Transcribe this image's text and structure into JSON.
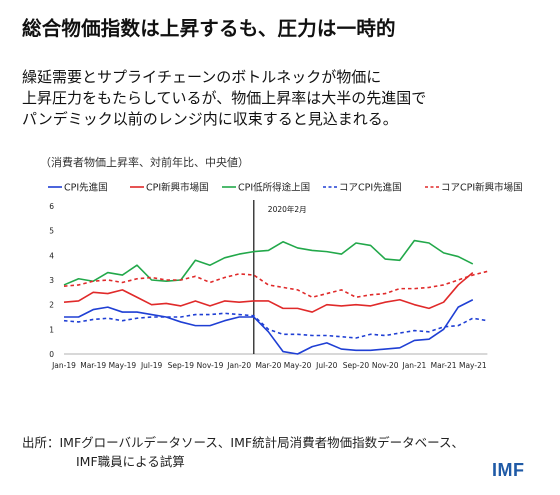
{
  "title": "総合物価指数は上昇するも、圧力は一時的",
  "subtitle_lines": [
    "繰延需要とサプライチェーンのボトルネックが物価に",
    "上昇圧力をもたらしているが、物価上昇率は大半の先進国で",
    "パンデミック以前のレンジ内に収束すると見込まれる。"
  ],
  "unit_label": "（消費者物価上昇率、対前年比、中央値）",
  "source_lines": [
    "出所：IMFグローバルデータソース、IMF統計局消費者物価指数データベース、",
    "IMF職員による試算"
  ],
  "logo": "IMF",
  "chart_data": {
    "type": "line",
    "x": [
      "Jan-19",
      "Feb-19",
      "Mar-19",
      "Apr-19",
      "May-19",
      "Jun-19",
      "Jul-19",
      "Aug-19",
      "Sep-19",
      "Oct-19",
      "Nov-19",
      "Dec-19",
      "Jan-20",
      "Feb-20",
      "Mar-20",
      "Apr-20",
      "May-20",
      "Jun-20",
      "Jul-20",
      "Aug-20",
      "Sep-20",
      "Oct-20",
      "Nov-20",
      "Dec-20",
      "Jan-21",
      "Feb-21",
      "Mar-21",
      "Apr-21",
      "May-21",
      "Jun-21"
    ],
    "x_tick_labels": [
      "Jan-19",
      "Mar-19",
      "May-19",
      "Jul-19",
      "Sep-19",
      "Nov-19",
      "Jan-20",
      "Mar-20",
      "May-20",
      "Jul-20",
      "Sep-20",
      "Nov-20",
      "Jan-21",
      "Mar-21",
      "May-21"
    ],
    "ylim": [
      0,
      6
    ],
    "yticks": [
      0,
      1,
      2,
      3,
      4,
      5,
      6
    ],
    "annotation": {
      "label": "2020年2月",
      "x": "Feb-20"
    },
    "series": [
      {
        "name": "CPI先進国",
        "color": "#1f3fd4",
        "dash": "solid",
        "values": [
          1.5,
          1.5,
          1.8,
          1.9,
          1.7,
          1.7,
          1.6,
          1.5,
          1.3,
          1.15,
          1.15,
          1.35,
          1.5,
          1.5,
          0.9,
          0.1,
          0.0,
          0.3,
          0.45,
          0.2,
          0.15,
          0.15,
          0.2,
          0.25,
          0.55,
          0.6,
          1.0,
          1.9,
          2.2,
          null
        ]
      },
      {
        "name": "CPI新興市場国",
        "color": "#e02a2a",
        "dash": "solid",
        "values": [
          2.1,
          2.15,
          2.5,
          2.45,
          2.6,
          2.3,
          2.0,
          2.05,
          1.95,
          2.15,
          1.95,
          2.15,
          2.1,
          2.15,
          2.15,
          1.85,
          1.85,
          1.7,
          2.0,
          1.95,
          2.0,
          1.95,
          2.1,
          2.2,
          2.0,
          1.85,
          2.1,
          2.8,
          3.3,
          null
        ]
      },
      {
        "name": "CPI低所得途上国",
        "color": "#22a84a",
        "dash": "solid",
        "values": [
          2.8,
          3.05,
          2.95,
          3.3,
          3.2,
          3.6,
          3.0,
          2.95,
          3.0,
          3.8,
          3.6,
          3.9,
          4.05,
          4.15,
          4.2,
          4.55,
          4.3,
          4.2,
          4.15,
          4.05,
          4.5,
          4.4,
          3.85,
          3.8,
          4.6,
          4.5,
          4.1,
          3.95,
          3.65,
          null
        ]
      },
      {
        "name": "コアCPI先進国",
        "color": "#1f3fd4",
        "dash": "dashed",
        "values": [
          1.35,
          1.3,
          1.4,
          1.45,
          1.35,
          1.45,
          1.5,
          1.5,
          1.5,
          1.6,
          1.6,
          1.65,
          1.6,
          1.55,
          1.0,
          0.8,
          0.8,
          0.75,
          0.75,
          0.7,
          0.65,
          0.8,
          0.75,
          0.85,
          0.95,
          0.9,
          1.1,
          1.15,
          1.45,
          1.35
        ]
      },
      {
        "name": "コアCPI新興市場国",
        "color": "#e02a2a",
        "dash": "dashed",
        "values": [
          2.75,
          2.8,
          2.95,
          3.0,
          2.9,
          3.05,
          3.1,
          3.0,
          3.0,
          3.15,
          2.9,
          3.1,
          3.25,
          3.2,
          2.8,
          2.7,
          2.6,
          2.3,
          2.45,
          2.6,
          2.3,
          2.4,
          2.45,
          2.65,
          2.65,
          2.7,
          2.8,
          3.0,
          3.2,
          3.35
        ]
      }
    ]
  }
}
